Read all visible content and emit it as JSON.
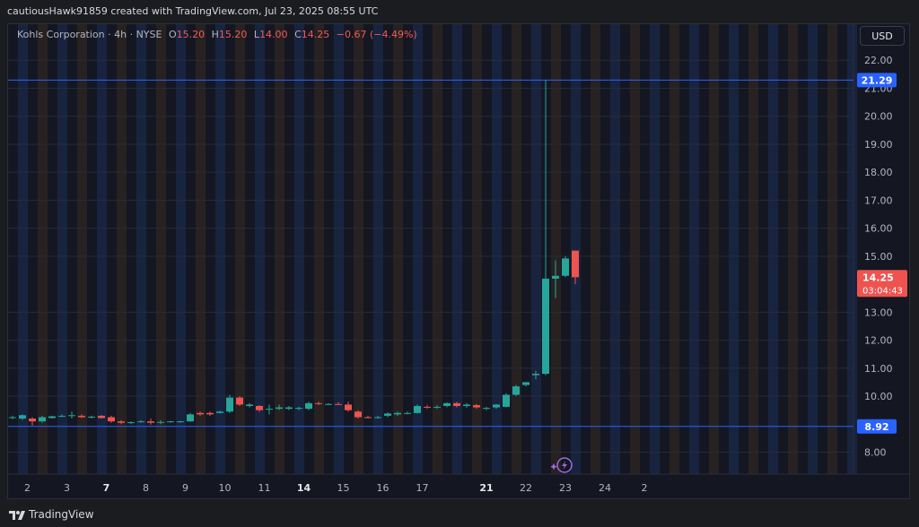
{
  "header": {
    "attribution": "cautiousHawk91859 created with TradingView.com, Jul 23, 2025 08:55 UTC"
  },
  "legend": {
    "symbol": "Kohls Corporation · 4h · NYSE",
    "open_label": "O",
    "open": "15.20",
    "high_label": "H",
    "high": "15.20",
    "low_label": "L",
    "low": "14.00",
    "close_label": "C",
    "close": "14.25",
    "change": "−0.67 (−4.49%)"
  },
  "toolbar": {
    "currency_button": "USD"
  },
  "footer": {
    "brand": "TradingView"
  },
  "price_badges": {
    "high_line": "21.29",
    "low_line": "8.92",
    "last_price": "14.25",
    "countdown": "03:04:43"
  },
  "colors": {
    "up": "#26a69a",
    "down": "#ef5350",
    "level_line": "#2962ff",
    "session_blue": "#1a2a4a",
    "session_brown": "#2e2721"
  },
  "icons": [
    "tradingview-logo-icon",
    "lightning-icon"
  ],
  "chart_data": {
    "type": "candlestick",
    "title": "Kohls Corporation · 4h · NYSE",
    "ylim": [
      7.6,
      22.2
    ],
    "y_ticks": [
      {
        "value": 8,
        "label": "8.00"
      },
      {
        "value": 10,
        "label": "10.00"
      },
      {
        "value": 11,
        "label": "11.00"
      },
      {
        "value": 12,
        "label": "12.00"
      },
      {
        "value": 13,
        "label": "13.00"
      },
      {
        "value": 15,
        "label": "15.00"
      },
      {
        "value": 16,
        "label": "16.00"
      },
      {
        "value": 17,
        "label": "17.00"
      },
      {
        "value": 18,
        "label": "18.00"
      },
      {
        "value": 19,
        "label": "19.00"
      },
      {
        "value": 20,
        "label": "20.00"
      },
      {
        "value": 21,
        "label": "21.00"
      },
      {
        "value": 22,
        "label": "22.00"
      }
    ],
    "x_ticks": [
      {
        "index": 1.5,
        "label": "2",
        "bold": false
      },
      {
        "index": 5.5,
        "label": "3",
        "bold": false
      },
      {
        "index": 9.5,
        "label": "7",
        "bold": true
      },
      {
        "index": 13.5,
        "label": "8",
        "bold": false
      },
      {
        "index": 17.5,
        "label": "9",
        "bold": false
      },
      {
        "index": 21.5,
        "label": "10",
        "bold": false
      },
      {
        "index": 25.5,
        "label": "11",
        "bold": false
      },
      {
        "index": 29.5,
        "label": "14",
        "bold": true
      },
      {
        "index": 33.5,
        "label": "15",
        "bold": false
      },
      {
        "index": 37.5,
        "label": "16",
        "bold": false
      },
      {
        "index": 41.5,
        "label": "17",
        "bold": false
      },
      {
        "index": 48,
        "label": "21",
        "bold": true
      },
      {
        "index": 52,
        "label": "22",
        "bold": false
      },
      {
        "index": 56,
        "label": "23",
        "bold": false
      },
      {
        "index": 60,
        "label": "24",
        "bold": false
      },
      {
        "index": 64,
        "label": "2",
        "bold": false
      }
    ],
    "horizontal_lines": [
      {
        "value": 21.29,
        "label": "21.29"
      },
      {
        "value": 8.92,
        "label": "8.92"
      }
    ],
    "last_price": 14.25,
    "candles": [
      {
        "o": 9.22,
        "h": 9.3,
        "l": 9.18,
        "c": 9.25
      },
      {
        "o": 9.2,
        "h": 9.35,
        "l": 9.15,
        "c": 9.32
      },
      {
        "o": 9.2,
        "h": 9.25,
        "l": 8.95,
        "c": 9.1
      },
      {
        "o": 9.1,
        "h": 9.3,
        "l": 9.05,
        "c": 9.25
      },
      {
        "o": 9.22,
        "h": 9.3,
        "l": 9.2,
        "c": 9.28
      },
      {
        "o": 9.28,
        "h": 9.35,
        "l": 9.25,
        "c": 9.3
      },
      {
        "o": 9.3,
        "h": 9.45,
        "l": 9.2,
        "c": 9.32
      },
      {
        "o": 9.3,
        "h": 9.35,
        "l": 9.22,
        "c": 9.25
      },
      {
        "o": 9.25,
        "h": 9.3,
        "l": 9.2,
        "c": 9.27
      },
      {
        "o": 9.3,
        "h": 9.32,
        "l": 9.2,
        "c": 9.22
      },
      {
        "o": 9.25,
        "h": 9.3,
        "l": 9.05,
        "c": 9.1
      },
      {
        "o": 9.1,
        "h": 9.15,
        "l": 9.0,
        "c": 9.05
      },
      {
        "o": 9.05,
        "h": 9.1,
        "l": 9.0,
        "c": 9.07
      },
      {
        "o": 9.1,
        "h": 9.15,
        "l": 9.05,
        "c": 9.1
      },
      {
        "o": 9.1,
        "h": 9.2,
        "l": 8.98,
        "c": 9.05
      },
      {
        "o": 9.05,
        "h": 9.15,
        "l": 9.0,
        "c": 9.08
      },
      {
        "o": 9.08,
        "h": 9.12,
        "l": 9.05,
        "c": 9.1
      },
      {
        "o": 9.08,
        "h": 9.12,
        "l": 9.05,
        "c": 9.1
      },
      {
        "o": 9.1,
        "h": 9.4,
        "l": 9.08,
        "c": 9.35
      },
      {
        "o": 9.4,
        "h": 9.45,
        "l": 9.3,
        "c": 9.35
      },
      {
        "o": 9.4,
        "h": 9.45,
        "l": 9.3,
        "c": 9.35
      },
      {
        "o": 9.4,
        "h": 9.48,
        "l": 9.38,
        "c": 9.45
      },
      {
        "o": 9.45,
        "h": 10.05,
        "l": 9.4,
        "c": 9.95
      },
      {
        "o": 9.95,
        "h": 10.0,
        "l": 9.65,
        "c": 9.7
      },
      {
        "o": 9.65,
        "h": 9.75,
        "l": 9.6,
        "c": 9.7
      },
      {
        "o": 9.65,
        "h": 9.68,
        "l": 9.45,
        "c": 9.5
      },
      {
        "o": 9.55,
        "h": 9.7,
        "l": 9.35,
        "c": 9.55
      },
      {
        "o": 9.55,
        "h": 9.7,
        "l": 9.5,
        "c": 9.6
      },
      {
        "o": 9.55,
        "h": 9.65,
        "l": 9.5,
        "c": 9.6
      },
      {
        "o": 9.55,
        "h": 9.62,
        "l": 9.5,
        "c": 9.58
      },
      {
        "o": 9.55,
        "h": 9.8,
        "l": 9.5,
        "c": 9.75
      },
      {
        "o": 9.75,
        "h": 9.8,
        "l": 9.68,
        "c": 9.72
      },
      {
        "o": 9.7,
        "h": 9.75,
        "l": 9.68,
        "c": 9.72
      },
      {
        "o": 9.72,
        "h": 9.78,
        "l": 9.68,
        "c": 9.7
      },
      {
        "o": 9.7,
        "h": 9.8,
        "l": 9.45,
        "c": 9.5
      },
      {
        "o": 9.45,
        "h": 9.5,
        "l": 9.2,
        "c": 9.25
      },
      {
        "o": 9.25,
        "h": 9.3,
        "l": 9.2,
        "c": 9.22
      },
      {
        "o": 9.22,
        "h": 9.3,
        "l": 9.2,
        "c": 9.25
      },
      {
        "o": 9.3,
        "h": 9.42,
        "l": 9.25,
        "c": 9.38
      },
      {
        "o": 9.35,
        "h": 9.45,
        "l": 9.3,
        "c": 9.4
      },
      {
        "o": 9.4,
        "h": 9.45,
        "l": 9.35,
        "c": 9.4
      },
      {
        "o": 9.4,
        "h": 9.7,
        "l": 9.38,
        "c": 9.65
      },
      {
        "o": 9.62,
        "h": 9.68,
        "l": 9.55,
        "c": 9.6
      },
      {
        "o": 9.6,
        "h": 9.68,
        "l": 9.55,
        "c": 9.62
      },
      {
        "o": 9.65,
        "h": 9.78,
        "l": 9.6,
        "c": 9.75
      },
      {
        "o": 9.75,
        "h": 9.8,
        "l": 9.6,
        "c": 9.65
      },
      {
        "o": 9.65,
        "h": 9.75,
        "l": 9.58,
        "c": 9.7
      },
      {
        "o": 9.68,
        "h": 9.72,
        "l": 9.55,
        "c": 9.6
      },
      {
        "o": 9.55,
        "h": 9.62,
        "l": 9.5,
        "c": 9.58
      },
      {
        "o": 9.6,
        "h": 9.72,
        "l": 9.55,
        "c": 9.7
      },
      {
        "o": 9.62,
        "h": 10.1,
        "l": 9.6,
        "c": 10.05
      },
      {
        "o": 10.05,
        "h": 10.4,
        "l": 10.0,
        "c": 10.35
      },
      {
        "o": 10.4,
        "h": 10.5,
        "l": 10.35,
        "c": 10.5
      },
      {
        "o": 10.75,
        "h": 10.9,
        "l": 10.6,
        "c": 10.8
      },
      {
        "o": 10.8,
        "h": 21.29,
        "l": 10.75,
        "c": 14.2
      },
      {
        "o": 14.2,
        "h": 14.85,
        "l": 13.5,
        "c": 14.3
      },
      {
        "o": 14.3,
        "h": 15.0,
        "l": 14.25,
        "c": 14.92
      },
      {
        "o": 15.2,
        "h": 15.2,
        "l": 14.0,
        "c": 14.25
      }
    ]
  }
}
